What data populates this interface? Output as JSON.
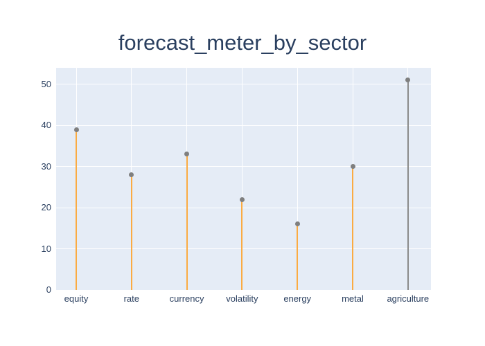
{
  "title": "forecast_meter_by_sector",
  "chart_data": {
    "type": "scatter",
    "variant": "stem-lollipop",
    "title": "forecast_meter_by_sector",
    "categories": [
      "equity",
      "rate",
      "currency",
      "volatility",
      "energy",
      "metal",
      "agriculture"
    ],
    "values": [
      39,
      28,
      33,
      22,
      16,
      30,
      51
    ],
    "series": [
      {
        "name": "forecast_meter",
        "values": [
          39,
          28,
          33,
          22,
          16,
          30,
          51
        ]
      }
    ],
    "stem_colors": [
      "#fbab42",
      "#fbab42",
      "#fbab42",
      "#fbab42",
      "#fbab42",
      "#fbab42",
      "#8a8a8a"
    ],
    "marker_color": "#7f7f7f",
    "yticks": [
      0,
      10,
      20,
      30,
      40,
      50
    ],
    "ylim": [
      0,
      54
    ],
    "xlabel": "",
    "ylabel": "",
    "grid": true,
    "legend_position": "none",
    "colors": {
      "plot_background": "#e5ecf6",
      "grid": "#ffffff",
      "title_text": "#2a3f5f",
      "tick_text": "#2a3f5f",
      "stem_orange": "#fbab42",
      "stem_gray": "#8a8a8a",
      "marker_gray": "#7f7f7f"
    }
  }
}
